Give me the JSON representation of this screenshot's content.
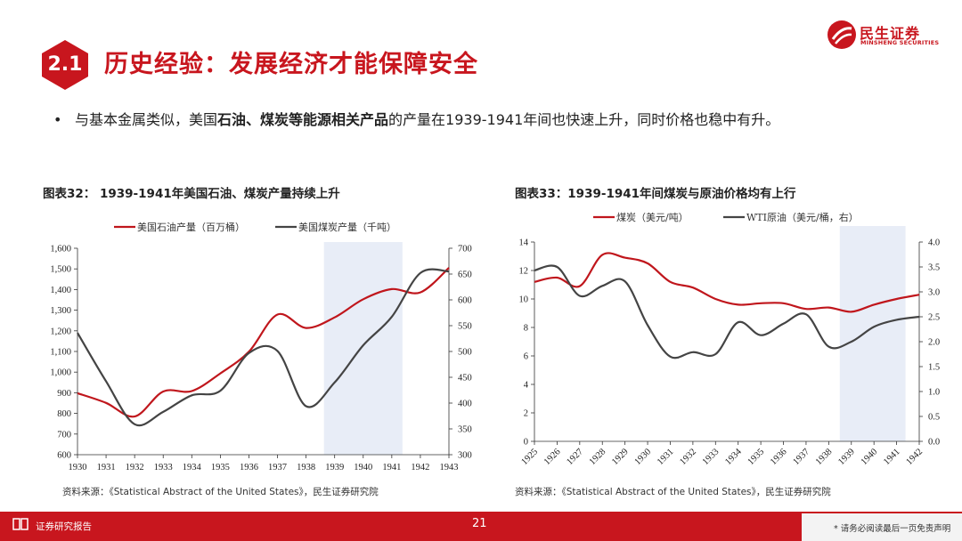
{
  "header": {
    "section_number": "2.1",
    "title": "历史经验：发展经济才能保障安全",
    "logo_cn": "民生证券",
    "logo_en": "MINSHENG SECURITIES"
  },
  "bullet": {
    "part1": "与基本金属类似，美国",
    "bold": "石油、煤炭等能源相关产品",
    "part2": "的产量在1939-1941年间也快速上升，同时价格也稳中有升。"
  },
  "colors": {
    "brand_red": "#c8161e",
    "series_red": "#c0161c",
    "series_gray": "#444444",
    "shade": "#e8edf7"
  },
  "chart_data": [
    {
      "type": "line",
      "figure_title": "图表32：  1939-1941年美国石油、煤炭产量持续上升",
      "source": "资料来源：《Statistical Abstract of the United States》，民生证券研究院",
      "x": [
        1930,
        1931,
        1932,
        1933,
        1934,
        1935,
        1936,
        1937,
        1938,
        1939,
        1940,
        1941,
        1942,
        1943
      ],
      "x_ticks": [
        "1930",
        "1931",
        "1932",
        "1933",
        "1934",
        "1935",
        "1936",
        "1937",
        "1938",
        "1939",
        "1940",
        "1941",
        "1942",
        "1943"
      ],
      "shaded_range": [
        1939,
        1941
      ],
      "y_left": {
        "range": [
          600,
          1600
        ],
        "ticks": [
          "600",
          "700",
          "800",
          "900",
          "1,000",
          "1,100",
          "1,200",
          "1,300",
          "1,400",
          "1,500",
          "1,600"
        ]
      },
      "y_right": {
        "range": [
          300,
          700
        ],
        "ticks": [
          "300",
          "350",
          "400",
          "450",
          "500",
          "550",
          "600",
          "650",
          "700"
        ]
      },
      "series": [
        {
          "name": "美国石油产量（百万桶）",
          "axis": "left",
          "color": "#c0161c",
          "values": [
            898,
            851,
            785,
            906,
            908,
            994,
            1099,
            1279,
            1214,
            1265,
            1353,
            1402,
            1386,
            1505
          ]
        },
        {
          "name": "美国煤炭产量（千吨）",
          "axis": "right",
          "color": "#444444",
          "values": [
            536,
            442,
            359,
            383,
            415,
            424,
            497,
            501,
            394,
            440,
            512,
            567,
            652,
            655
          ]
        }
      ]
    },
    {
      "type": "line",
      "figure_title": "图表33：1939-1941年间煤炭与原油价格均有上行",
      "source": "资料来源：《Statistical Abstract of the United States》，民生证券研究院",
      "x": [
        1925,
        1926,
        1927,
        1928,
        1929,
        1930,
        1931,
        1932,
        1933,
        1934,
        1935,
        1936,
        1937,
        1938,
        1939,
        1940,
        1941,
        1942
      ],
      "x_ticks": [
        "1925",
        "1926",
        "1927",
        "1928",
        "1929",
        "1930",
        "1931",
        "1932",
        "1933",
        "1934",
        "1935",
        "1936",
        "1937",
        "1938",
        "1939",
        "1940",
        "1941",
        "1942"
      ],
      "shaded_range": [
        1939,
        1941
      ],
      "y_left": {
        "range": [
          0,
          14
        ],
        "ticks": [
          "0",
          "2",
          "4",
          "6",
          "8",
          "10",
          "12",
          "14"
        ]
      },
      "y_right": {
        "range": [
          0,
          4
        ],
        "ticks": [
          "0.0",
          "0.5",
          "1.0",
          "1.5",
          "2.0",
          "2.5",
          "3.0",
          "3.5",
          "4.0"
        ]
      },
      "series": [
        {
          "name": "煤炭（美元/吨）",
          "axis": "left",
          "color": "#c0161c",
          "values": [
            11.2,
            11.5,
            10.9,
            13.1,
            12.9,
            12.5,
            11.2,
            10.8,
            10.0,
            9.6,
            9.7,
            9.7,
            9.3,
            9.4,
            9.1,
            9.6,
            10.0,
            10.3
          ]
        },
        {
          "name": "WTI原油（美元/桶，右）",
          "axis": "right",
          "color": "#444444",
          "values": [
            3.43,
            3.5,
            2.92,
            3.12,
            3.21,
            2.33,
            1.7,
            1.79,
            1.75,
            2.39,
            2.13,
            2.36,
            2.55,
            1.9,
            2.0,
            2.3,
            2.44,
            2.5
          ]
        }
      ]
    }
  ],
  "footer": {
    "label": "证券研究报告",
    "page_number": "21",
    "disclaimer": "* 请务必阅读最后一页免责声明"
  }
}
